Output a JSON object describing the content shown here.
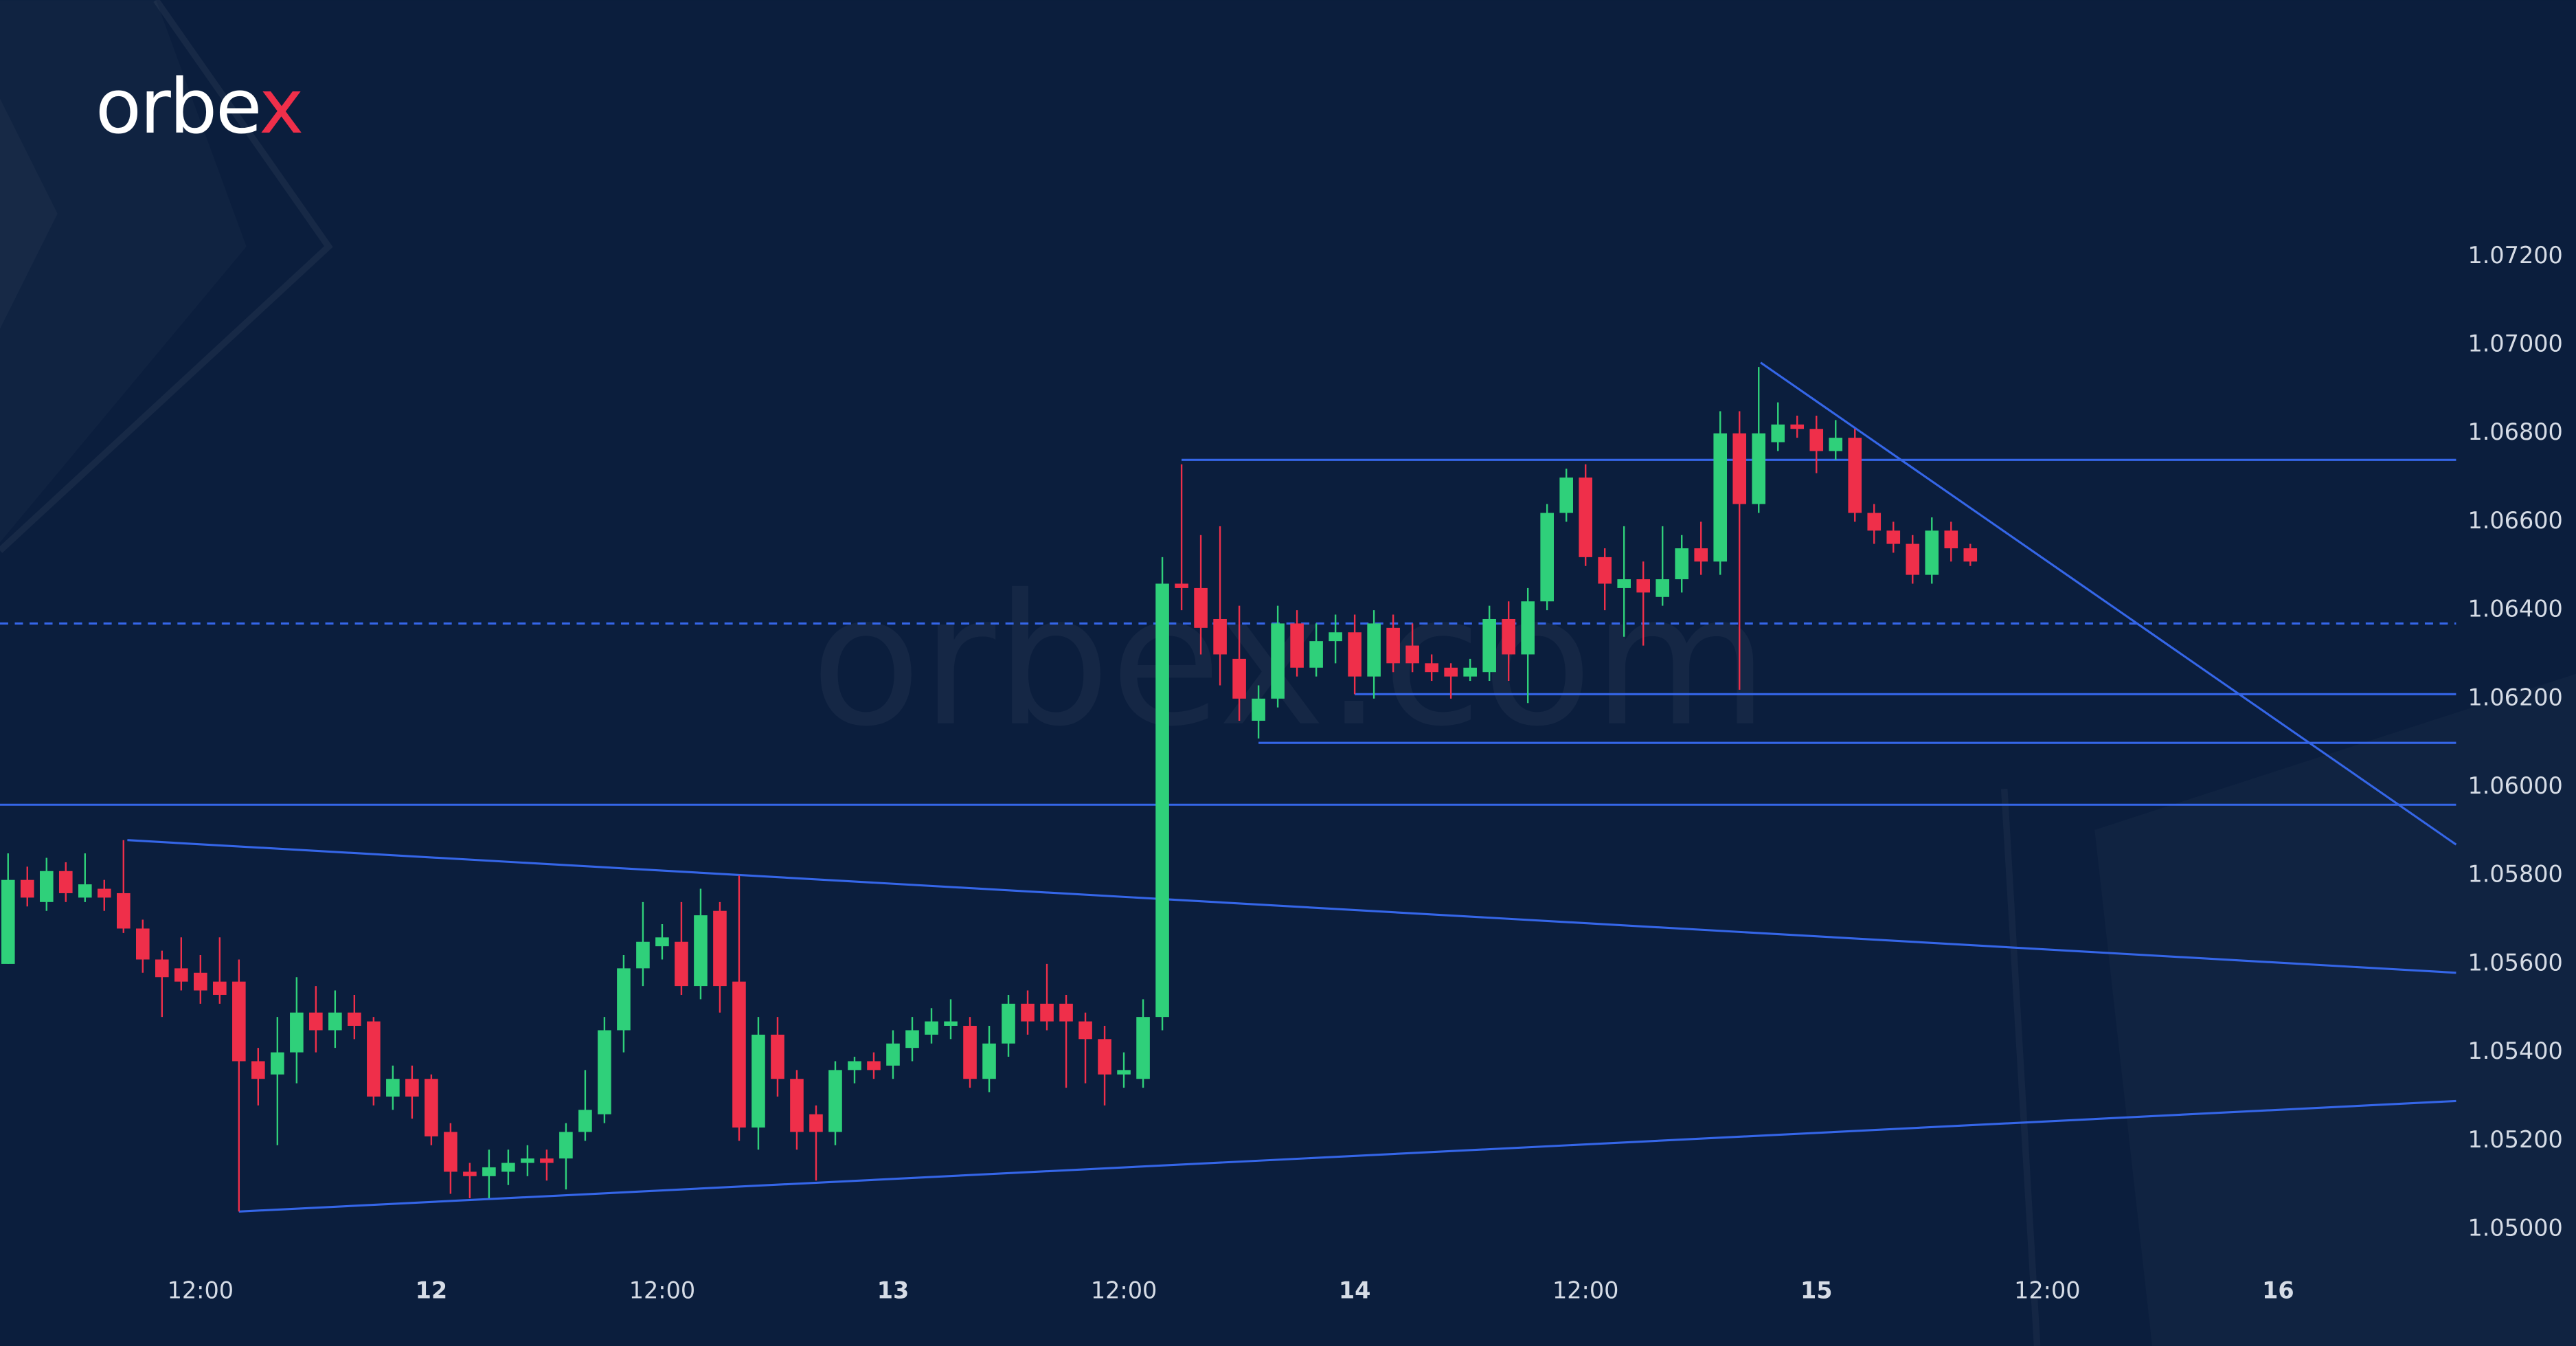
{
  "chart_data": {
    "type": "candlestick",
    "logo": "orbex",
    "watermark": "orbex.com",
    "up_color": "#2fd07a",
    "down_color": "#ef2f4a",
    "line_color": "#3566e8",
    "x": [
      2,
      3,
      4,
      5,
      6,
      7,
      8,
      9,
      10,
      11,
      12,
      13,
      14,
      15,
      16,
      17,
      18,
      19,
      20,
      21,
      22,
      23,
      24,
      25,
      26,
      27,
      28,
      29,
      30,
      31,
      32,
      33,
      34,
      35,
      36,
      37,
      38,
      39,
      40,
      41,
      42,
      43,
      44,
      45,
      46,
      47,
      48,
      49,
      50,
      51,
      52,
      53,
      54,
      55,
      56,
      57,
      58,
      59,
      60,
      61,
      62,
      63,
      64,
      65,
      66,
      67,
      68,
      69,
      70,
      71,
      72,
      73,
      74,
      75,
      76,
      77,
      78,
      79,
      80,
      81,
      82,
      83,
      84,
      85,
      86,
      87,
      88,
      89,
      90,
      91,
      92,
      93,
      94,
      95,
      96,
      97,
      98,
      99,
      100,
      101,
      102,
      103,
      104
    ],
    "open": [
      1.056,
      1.0579,
      1.0574,
      1.0581,
      1.0575,
      1.0577,
      1.0576,
      1.0568,
      1.0561,
      1.0559,
      1.0558,
      1.0556,
      1.0556,
      1.0538,
      1.0535,
      1.054,
      1.0549,
      1.0545,
      1.0549,
      1.0547,
      1.053,
      1.0534,
      1.0534,
      1.0522,
      1.0513,
      1.0512,
      1.0513,
      1.0515,
      1.0516,
      1.0516,
      1.0522,
      1.0526,
      1.0545,
      1.0559,
      1.0564,
      1.0565,
      1.0555,
      1.0572,
      1.0556,
      1.0523,
      1.0544,
      1.0534,
      1.0526,
      1.0522,
      1.0536,
      1.0538,
      1.0537,
      1.0541,
      1.0544,
      1.0546,
      1.0546,
      1.0534,
      1.0542,
      1.0551,
      1.0551,
      1.0551,
      1.0547,
      1.0543,
      1.0535,
      1.0534,
      1.0548,
      1.0646,
      1.0645,
      1.0638,
      1.0629,
      1.0615,
      1.062,
      1.0637,
      1.0627,
      1.0633,
      1.0635,
      1.0625,
      1.0636,
      1.0632,
      1.0628,
      1.0627,
      1.0625,
      1.0626,
      1.0638,
      1.063,
      1.0642,
      1.0662,
      1.067,
      1.0652,
      1.0645,
      1.0647,
      1.0643,
      1.0647,
      1.0654,
      1.0651,
      1.068,
      1.0664,
      1.0678,
      1.0682,
      1.0681,
      1.0676,
      1.0679,
      1.0662,
      1.0658,
      1.0655,
      1.0648,
      1.0658,
      1.0654
    ],
    "high": [
      1.0585,
      1.0582,
      1.0584,
      1.0583,
      1.0585,
      1.0579,
      1.0588,
      1.057,
      1.0563,
      1.0566,
      1.0562,
      1.0566,
      1.0561,
      1.0541,
      1.0548,
      1.0557,
      1.0555,
      1.0554,
      1.0553,
      1.0548,
      1.0537,
      1.0537,
      1.0535,
      1.0524,
      1.0515,
      1.0518,
      1.0518,
      1.0519,
      1.0518,
      1.0524,
      1.0536,
      1.0548,
      1.0562,
      1.0574,
      1.0569,
      1.0574,
      1.0577,
      1.0574,
      1.058,
      1.0548,
      1.0548,
      1.0536,
      1.0528,
      1.0538,
      1.0539,
      1.054,
      1.0545,
      1.0548,
      1.055,
      1.0552,
      1.0548,
      1.0546,
      1.0553,
      1.0554,
      1.056,
      1.0553,
      1.0549,
      1.0546,
      1.054,
      1.0552,
      1.0652,
      1.0673,
      1.0657,
      1.0659,
      1.0641,
      1.0623,
      1.0641,
      1.064,
      1.0637,
      1.0639,
      1.0639,
      1.064,
      1.0639,
      1.0637,
      1.063,
      1.0628,
      1.0629,
      1.0641,
      1.0642,
      1.0645,
      1.0664,
      1.0672,
      1.0673,
      1.0654,
      1.0659,
      1.0651,
      1.0659,
      1.0657,
      1.066,
      1.0685,
      1.0685,
      1.0695,
      1.0687,
      1.0684,
      1.0684,
      1.0683,
      1.0681,
      1.0664,
      1.066,
      1.0657,
      1.0661,
      1.066,
      1.0655
    ],
    "low": [
      1.056,
      1.0573,
      1.0572,
      1.0574,
      1.0574,
      1.0572,
      1.0567,
      1.0558,
      1.0548,
      1.0554,
      1.0551,
      1.0551,
      1.0504,
      1.0528,
      1.0519,
      1.0533,
      1.054,
      1.0541,
      1.0543,
      1.0528,
      1.0527,
      1.0525,
      1.0519,
      1.0508,
      1.0507,
      1.0507,
      1.051,
      1.0512,
      1.0511,
      1.0509,
      1.052,
      1.0524,
      1.054,
      1.0555,
      1.0561,
      1.0553,
      1.0552,
      1.0549,
      1.052,
      1.0518,
      1.053,
      1.0518,
      1.0511,
      1.0519,
      1.0533,
      1.0534,
      1.0534,
      1.0538,
      1.0542,
      1.0543,
      1.0532,
      1.0531,
      1.0539,
      1.0544,
      1.0545,
      1.0532,
      1.0533,
      1.0528,
      1.0532,
      1.0532,
      1.0545,
      1.064,
      1.063,
      1.0623,
      1.0615,
      1.0611,
      1.0618,
      1.0625,
      1.0625,
      1.0628,
      1.0621,
      1.062,
      1.0626,
      1.0626,
      1.0624,
      1.062,
      1.0624,
      1.0624,
      1.0624,
      1.0619,
      1.064,
      1.066,
      1.065,
      1.064,
      1.0634,
      1.0632,
      1.0641,
      1.0644,
      1.0648,
      1.0648,
      1.0622,
      1.0662,
      1.0676,
      1.0679,
      1.0671,
      1.0674,
      1.066,
      1.0655,
      1.0653,
      1.0646,
      1.0646,
      1.0651,
      1.065
    ],
    "close": [
      1.0579,
      1.0575,
      1.0581,
      1.0576,
      1.0578,
      1.0575,
      1.0568,
      1.0561,
      1.0557,
      1.0556,
      1.0554,
      1.0553,
      1.0538,
      1.0534,
      1.054,
      1.0549,
      1.0545,
      1.0549,
      1.0546,
      1.053,
      1.0534,
      1.053,
      1.0521,
      1.0513,
      1.0512,
      1.0514,
      1.0515,
      1.0516,
      1.0515,
      1.0522,
      1.0527,
      1.0545,
      1.0559,
      1.0565,
      1.0566,
      1.0555,
      1.0571,
      1.0555,
      1.0523,
      1.0544,
      1.0534,
      1.0522,
      1.0522,
      1.0536,
      1.0538,
      1.0536,
      1.0542,
      1.0545,
      1.0547,
      1.0547,
      1.0534,
      1.0542,
      1.0551,
      1.0547,
      1.0547,
      1.0547,
      1.0543,
      1.0535,
      1.0536,
      1.0548,
      1.0646,
      1.0645,
      1.0636,
      1.063,
      1.062,
      1.062,
      1.0637,
      1.0627,
      1.0633,
      1.0635,
      1.0625,
      1.0637,
      1.0628,
      1.0628,
      1.0626,
      1.0625,
      1.0627,
      1.0638,
      1.063,
      1.0642,
      1.0662,
      1.067,
      1.0652,
      1.0646,
      1.0647,
      1.0644,
      1.0647,
      1.0654,
      1.0651,
      1.068,
      1.0664,
      1.068,
      1.0682,
      1.0681,
      1.0676,
      1.0679,
      1.0662,
      1.0658,
      1.0655,
      1.0648,
      1.0658,
      1.0654,
      1.0651
    ],
    "lines": [
      {
        "x": [
          63,
          129.25
        ],
        "y": [
          1.0674,
          1.0674
        ]
      },
      {
        "x": [
          72,
          129.25
        ],
        "y": [
          1.0621,
          1.0621
        ]
      },
      {
        "x": [
          67,
          129.25
        ],
        "y": [
          1.061,
          1.061
        ]
      },
      {
        "x": [
          1.58,
          129.25
        ],
        "y": [
          1.0596,
          1.0596
        ]
      },
      {
        "x": [
          8.2,
          129.25
        ],
        "y": [
          1.0588,
          1.0558
        ]
      },
      {
        "x": [
          14,
          129.25
        ],
        "y": [
          1.0504,
          1.0529
        ]
      },
      {
        "x": [
          93.1,
          129.25
        ],
        "y": [
          1.0696,
          1.0587
        ]
      },
      {
        "x": [
          1.58,
          129.25
        ],
        "y": [
          1.0637,
          1.0637
        ],
        "dashed": true
      }
    ],
    "xlim": [
      1.58,
      129.25
    ],
    "xticks": [
      {
        "value": 12,
        "label": "12:00"
      },
      {
        "value": 24,
        "label": "12"
      },
      {
        "value": 36,
        "label": "12:00"
      },
      {
        "value": 48,
        "label": "13"
      },
      {
        "value": 60,
        "label": "12:00"
      },
      {
        "value": 72,
        "label": "14"
      },
      {
        "value": 84,
        "label": "12:00"
      },
      {
        "value": 96,
        "label": "15"
      },
      {
        "value": 108,
        "label": "12:00"
      },
      {
        "value": 120,
        "label": "16"
      }
    ],
    "ylim": [
      1.049,
      1.074
    ],
    "yticks": [
      {
        "value": 1.05,
        "label": "1.05000"
      },
      {
        "value": 1.052,
        "label": "1.05200"
      },
      {
        "value": 1.054,
        "label": "1.05400"
      },
      {
        "value": 1.056,
        "label": "1.05600"
      },
      {
        "value": 1.058,
        "label": "1.05800"
      },
      {
        "value": 1.06,
        "label": "1.06000"
      },
      {
        "value": 1.062,
        "label": "1.06200"
      },
      {
        "value": 1.064,
        "label": "1.06400"
      },
      {
        "value": 1.066,
        "label": "1.06600"
      },
      {
        "value": 1.068,
        "label": "1.06800"
      },
      {
        "value": 1.07,
        "label": "1.07000"
      },
      {
        "value": 1.072,
        "label": "1.07200"
      }
    ]
  }
}
